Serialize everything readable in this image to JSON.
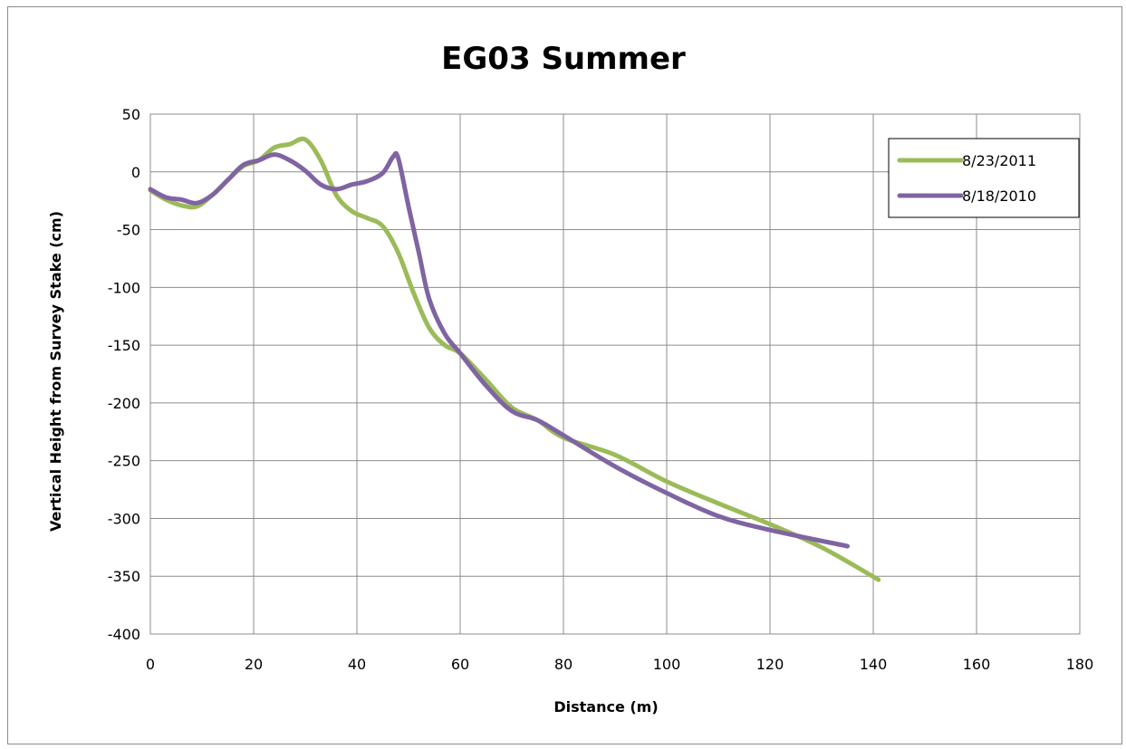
{
  "chart_data": {
    "type": "line",
    "title": "EG03 Summer",
    "xlabel": "Distance  (m)",
    "ylabel": "Vertical Height from Survey Stake (cm)",
    "xlim": [
      0,
      180
    ],
    "ylim": [
      -400,
      50
    ],
    "xticks": [
      0,
      20,
      40,
      60,
      80,
      100,
      120,
      140,
      160,
      180
    ],
    "yticks": [
      50,
      0,
      -50,
      -100,
      -150,
      -200,
      -250,
      -300,
      -350,
      -400
    ],
    "grid": true,
    "legend_position": "top-right",
    "series": [
      {
        "name": "8/23/2011",
        "color": "#9bbb59",
        "x": [
          0,
          3,
          6,
          9,
          12,
          15,
          18,
          21,
          24,
          27,
          30,
          33,
          36,
          39,
          42,
          45,
          48,
          51,
          54,
          57,
          60,
          65,
          70,
          75,
          80,
          90,
          100,
          110,
          120,
          130,
          141
        ],
        "y": [
          -16,
          -24,
          -29,
          -30,
          -20,
          -7,
          5,
          10,
          21,
          24,
          28,
          10,
          -20,
          -34,
          -40,
          -47,
          -70,
          -105,
          -135,
          -150,
          -157,
          -180,
          -204,
          -215,
          -230,
          -245,
          -268,
          -287,
          -305,
          -325,
          -353
        ]
      },
      {
        "name": "8/18/2010",
        "color": "#8064a2",
        "x": [
          0,
          3,
          6,
          9,
          12,
          15,
          18,
          21,
          24,
          27,
          30,
          33,
          36,
          39,
          42,
          45,
          47,
          48,
          50,
          52,
          54,
          57,
          60,
          65,
          70,
          75,
          80,
          90,
          100,
          110,
          120,
          135
        ],
        "y": [
          -15,
          -22,
          -24,
          -27,
          -20,
          -7,
          6,
          10,
          15,
          10,
          1,
          -11,
          -15,
          -11,
          -8,
          -1,
          13,
          12,
          -30,
          -70,
          -110,
          -140,
          -157,
          -185,
          -207,
          -215,
          -228,
          -255,
          -278,
          -298,
          -310,
          -324
        ]
      }
    ]
  }
}
